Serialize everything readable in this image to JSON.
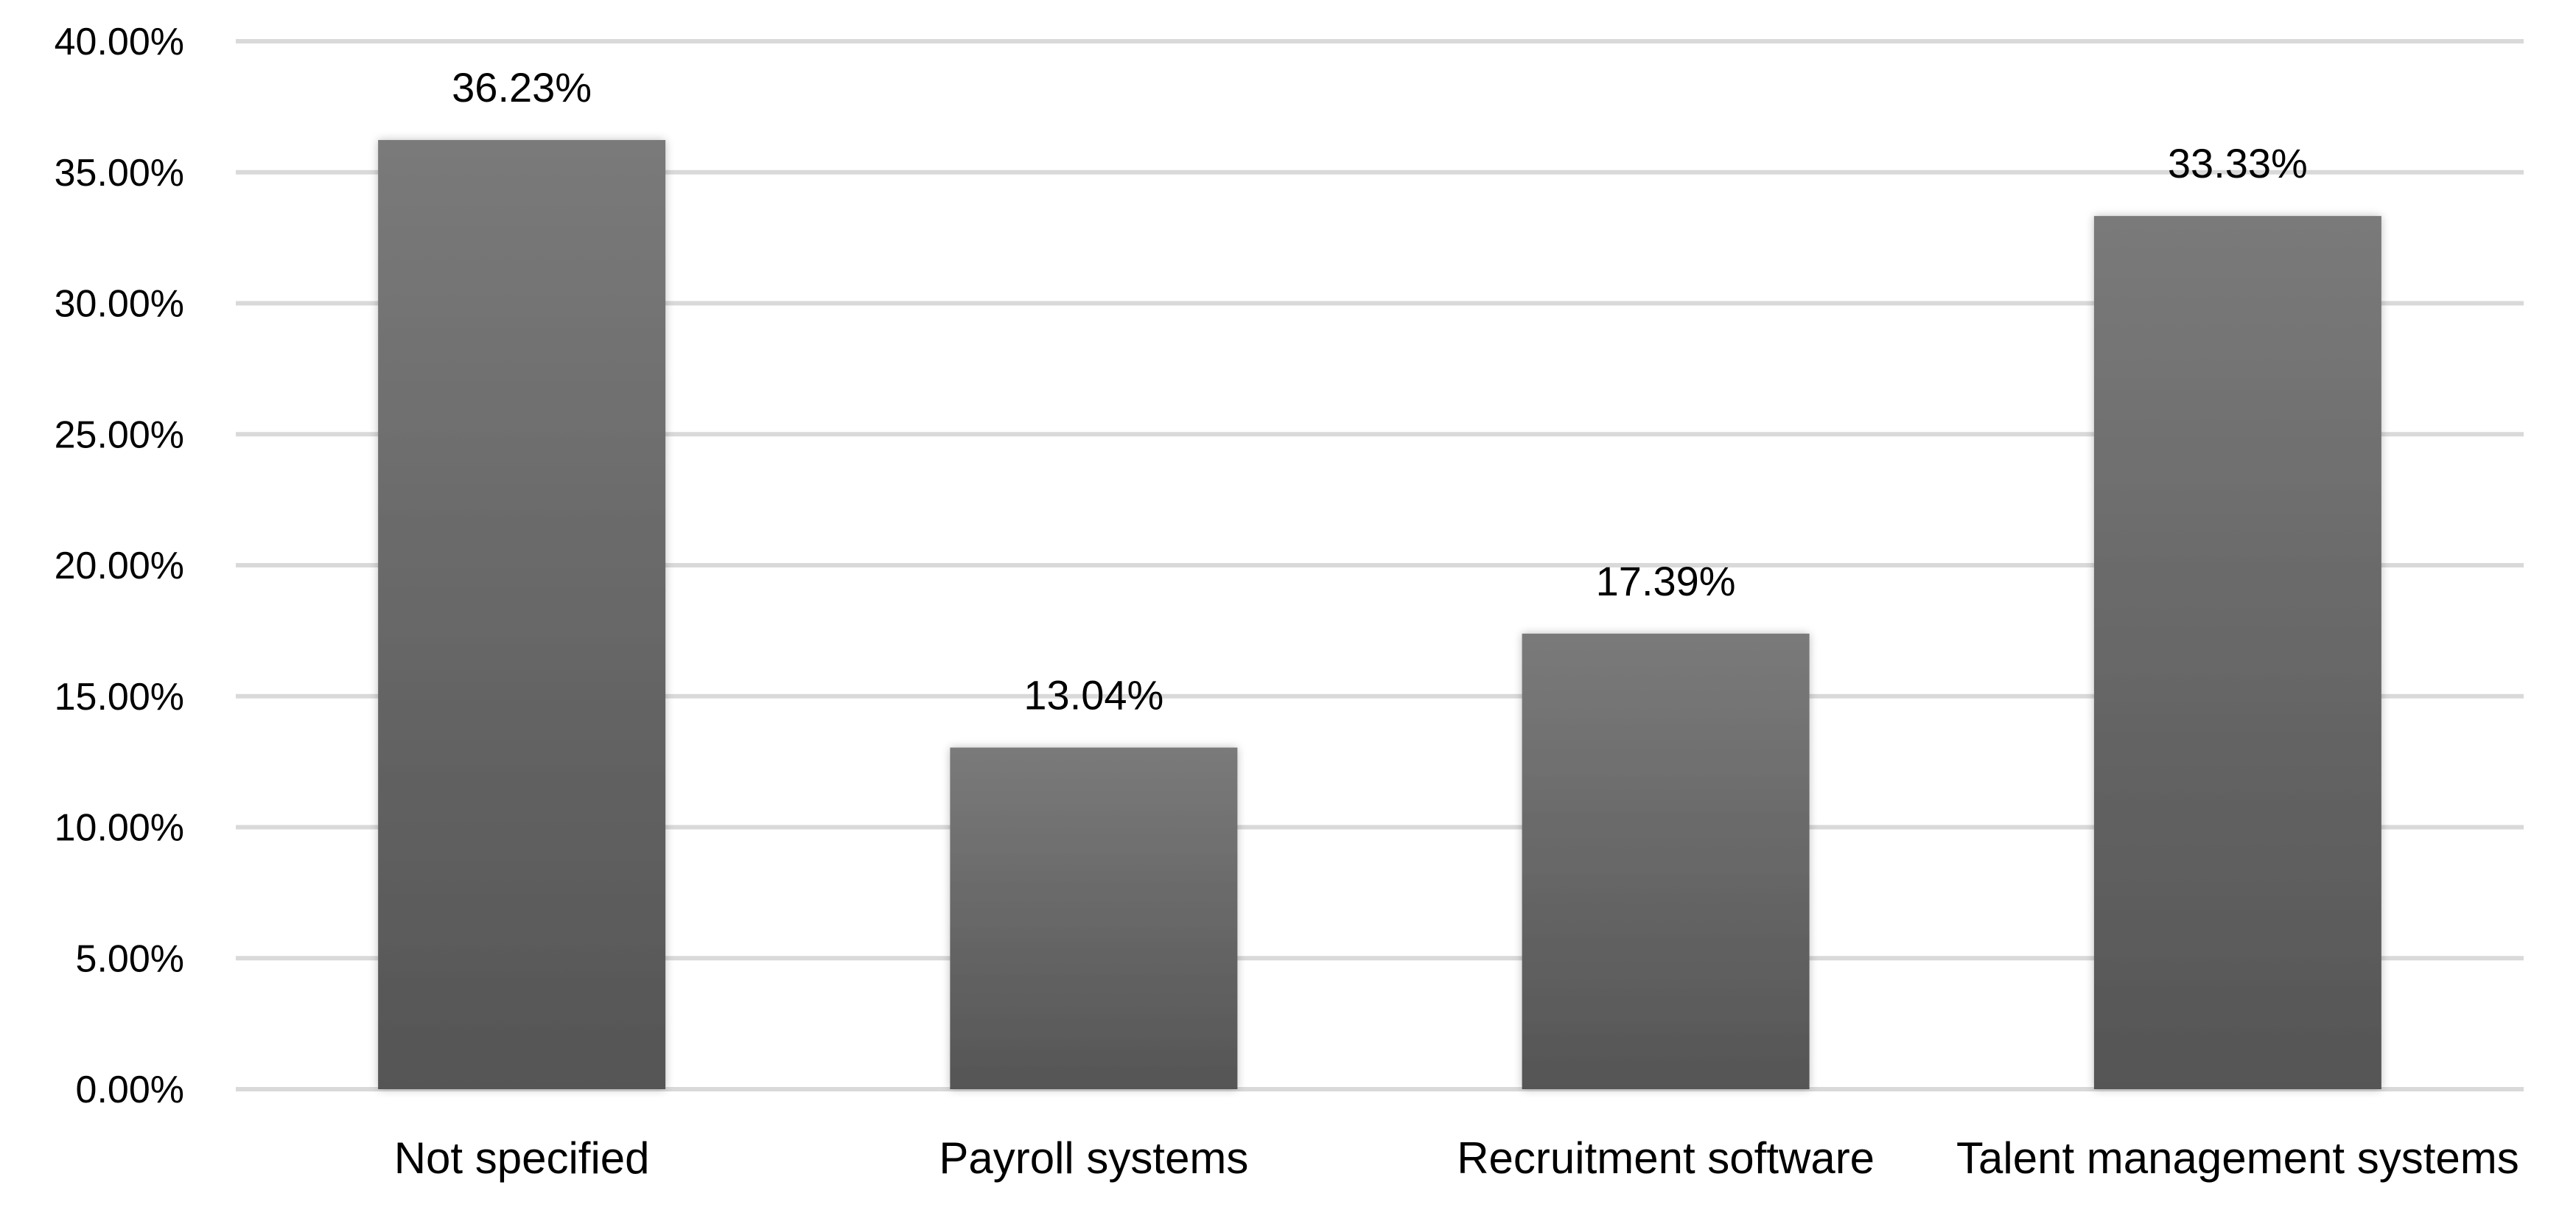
{
  "chart_data": {
    "type": "bar",
    "title": "",
    "xlabel": "",
    "ylabel": "",
    "categories": [
      "Not specified",
      "Payroll systems",
      "Recruitment software",
      "Talent management systems"
    ],
    "values": [
      36.23,
      13.04,
      17.39,
      33.33
    ],
    "data_labels": [
      "36.23%",
      "13.04%",
      "17.39%",
      "33.33%"
    ],
    "ylim": [
      0,
      40
    ],
    "y_ticks": [
      0,
      5,
      10,
      15,
      20,
      25,
      30,
      35,
      40
    ],
    "y_tick_labels": [
      "0.00%",
      "5.00%",
      "10.00%",
      "15.00%",
      "20.00%",
      "25.00%",
      "30.00%",
      "35.00%",
      "40.00%"
    ],
    "grid": true,
    "legend": "none",
    "colors": {
      "bar_top": "#7a7a7a",
      "bar_bottom": "#555555",
      "grid": "#d9d9d9"
    }
  }
}
